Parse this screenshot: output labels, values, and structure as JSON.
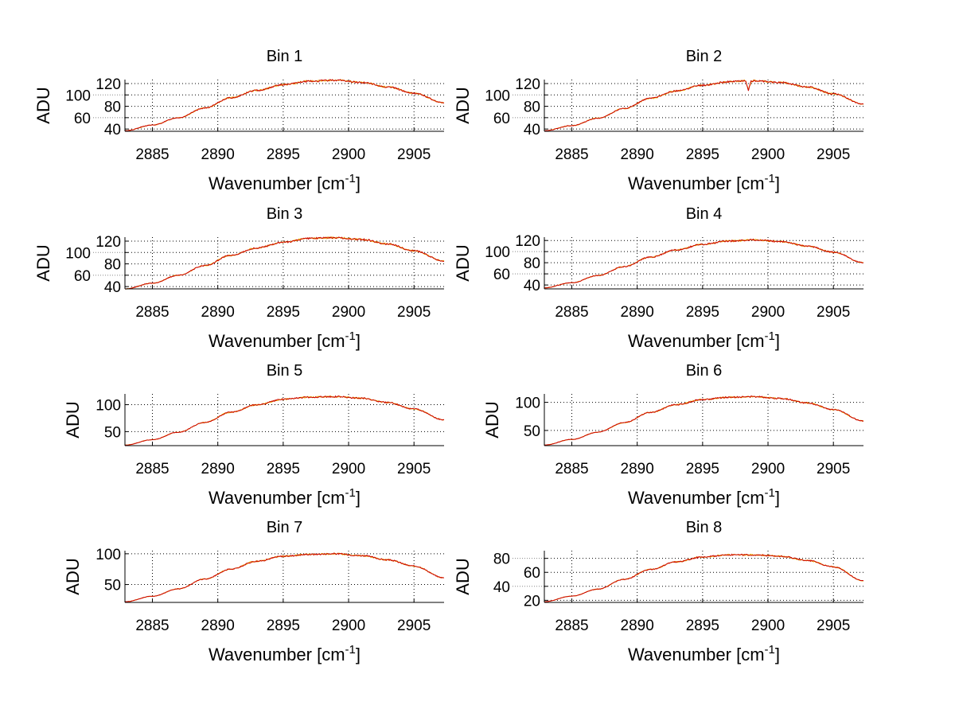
{
  "chart_data": [
    {
      "type": "line",
      "title": "Bin 1",
      "xlabel": "Wavenumber [cm",
      "xlabel_sup": "-1",
      "xlabel_end": "]",
      "ylabel": "ADU",
      "xlim": [
        2882.9,
        2907.3
      ],
      "ylim": [
        36,
        127
      ],
      "xticks": [
        2885,
        2890,
        2895,
        2900,
        2905
      ],
      "yticks": [
        40,
        60,
        80,
        100,
        120
      ],
      "grid": true,
      "x": [
        2882.9,
        2885,
        2887,
        2889,
        2891,
        2893,
        2895,
        2897,
        2899,
        2901,
        2903,
        2905,
        2907.3
      ],
      "y": [
        37,
        47,
        60,
        77,
        95,
        108,
        118,
        124,
        126,
        122,
        114,
        103,
        86
      ]
    },
    {
      "type": "line",
      "title": "Bin 2",
      "xlabel": "Wavenumber [cm",
      "xlabel_sup": "-1",
      "xlabel_end": "]",
      "ylabel": "ADU",
      "xlim": [
        2882.9,
        2907.3
      ],
      "ylim": [
        36,
        127
      ],
      "xticks": [
        2885,
        2890,
        2895,
        2900,
        2905
      ],
      "yticks": [
        40,
        60,
        80,
        100,
        120
      ],
      "grid": true,
      "x": [
        2882.9,
        2885,
        2887,
        2889,
        2891,
        2893,
        2895,
        2897,
        2898.3,
        2898.5,
        2898.7,
        2899,
        2901,
        2903,
        2905,
        2907.3
      ],
      "y": [
        37,
        46,
        59,
        76,
        94,
        107,
        117,
        123,
        125,
        108,
        124,
        125,
        122,
        114,
        102,
        84
      ]
    },
    {
      "type": "line",
      "title": "Bin 3",
      "xlabel": "Wavenumber [cm",
      "xlabel_sup": "-1",
      "xlabel_end": "]",
      "ylabel": "ADU",
      "xlim": [
        2882.9,
        2907.3
      ],
      "ylim": [
        36,
        127
      ],
      "xticks": [
        2885,
        2890,
        2895,
        2900,
        2905
      ],
      "yticks": [
        40,
        60,
        80,
        100,
        120
      ],
      "grid": true,
      "x": [
        2882.9,
        2885,
        2887,
        2889,
        2891,
        2893,
        2895,
        2897,
        2899,
        2901,
        2903,
        2905,
        2907.3
      ],
      "y": [
        36,
        46,
        60,
        77,
        95,
        108,
        118,
        125,
        126,
        123,
        115,
        103,
        85
      ]
    },
    {
      "type": "line",
      "title": "Bin 4",
      "xlabel": "Wavenumber [cm",
      "xlabel_sup": "-1",
      "xlabel_end": "]",
      "ylabel": "ADU",
      "xlim": [
        2882.9,
        2907.3
      ],
      "ylim": [
        33,
        126
      ],
      "xticks": [
        2885,
        2890,
        2895,
        2900,
        2905
      ],
      "yticks": [
        40,
        60,
        80,
        100,
        120
      ],
      "grid": true,
      "x": [
        2882.9,
        2885,
        2887,
        2889,
        2891,
        2893,
        2895,
        2897,
        2899,
        2901,
        2903,
        2905,
        2907.3
      ],
      "y": [
        35,
        44,
        57,
        73,
        90,
        103,
        113,
        119,
        121,
        118,
        110,
        99,
        80
      ]
    },
    {
      "type": "line",
      "title": "Bin 5",
      "xlabel": "Wavenumber [cm",
      "xlabel_sup": "-1",
      "xlabel_end": "]",
      "ylabel": "ADU",
      "xlim": [
        2882.9,
        2907.3
      ],
      "ylim": [
        24,
        120
      ],
      "xticks": [
        2885,
        2890,
        2895,
        2900,
        2905
      ],
      "yticks": [
        50,
        100
      ],
      "grid": true,
      "x": [
        2882.9,
        2885,
        2887,
        2889,
        2891,
        2893,
        2895,
        2897,
        2899,
        2901,
        2903,
        2905,
        2907.3
      ],
      "y": [
        25,
        35,
        49,
        67,
        86,
        100,
        110,
        114,
        115,
        112,
        104,
        92,
        72
      ]
    },
    {
      "type": "line",
      "title": "Bin 6",
      "xlabel": "Wavenumber [cm",
      "xlabel_sup": "-1",
      "xlabel_end": "]",
      "ylabel": "ADU",
      "xlim": [
        2882.9,
        2907.3
      ],
      "ylim": [
        23,
        115
      ],
      "xticks": [
        2885,
        2890,
        2895,
        2900,
        2905
      ],
      "yticks": [
        50,
        100
      ],
      "grid": true,
      "x": [
        2882.9,
        2885,
        2887,
        2889,
        2891,
        2893,
        2895,
        2897,
        2899,
        2901,
        2903,
        2905,
        2907.3
      ],
      "y": [
        24,
        34,
        47,
        64,
        82,
        96,
        105,
        109,
        110,
        107,
        99,
        87,
        67
      ]
    },
    {
      "type": "line",
      "title": "Bin 7",
      "xlabel": "Wavenumber [cm",
      "xlabel_sup": "-1",
      "xlabel_end": "]",
      "ylabel": "ADU",
      "xlim": [
        2882.9,
        2907.3
      ],
      "ylim": [
        21,
        105
      ],
      "xticks": [
        2885,
        2890,
        2895,
        2900,
        2905
      ],
      "yticks": [
        50,
        100
      ],
      "grid": true,
      "x": [
        2882.9,
        2885,
        2887,
        2889,
        2891,
        2893,
        2895,
        2897,
        2899,
        2901,
        2903,
        2905,
        2907.3
      ],
      "y": [
        22,
        31,
        43,
        59,
        75,
        88,
        96,
        99,
        100,
        97,
        90,
        80,
        61
      ]
    },
    {
      "type": "line",
      "title": "Bin 8",
      "xlabel": "Wavenumber [cm",
      "xlabel_sup": "-1",
      "xlabel_end": "]",
      "ylabel": "ADU",
      "xlim": [
        2882.9,
        2907.3
      ],
      "ylim": [
        17,
        91
      ],
      "xticks": [
        2885,
        2890,
        2895,
        2900,
        2905
      ],
      "yticks": [
        20,
        40,
        60,
        80
      ],
      "grid": true,
      "x": [
        2882.9,
        2885,
        2887,
        2889,
        2891,
        2893,
        2895,
        2897,
        2899,
        2901,
        2903,
        2905,
        2907.3
      ],
      "y": [
        18,
        26,
        36,
        50,
        64,
        75,
        82,
        85,
        85,
        83,
        77,
        68,
        48
      ]
    }
  ],
  "colors": {
    "line": "#cc0000",
    "line_under": "#e8b000",
    "axis": "#000000",
    "grid": "#000000"
  }
}
